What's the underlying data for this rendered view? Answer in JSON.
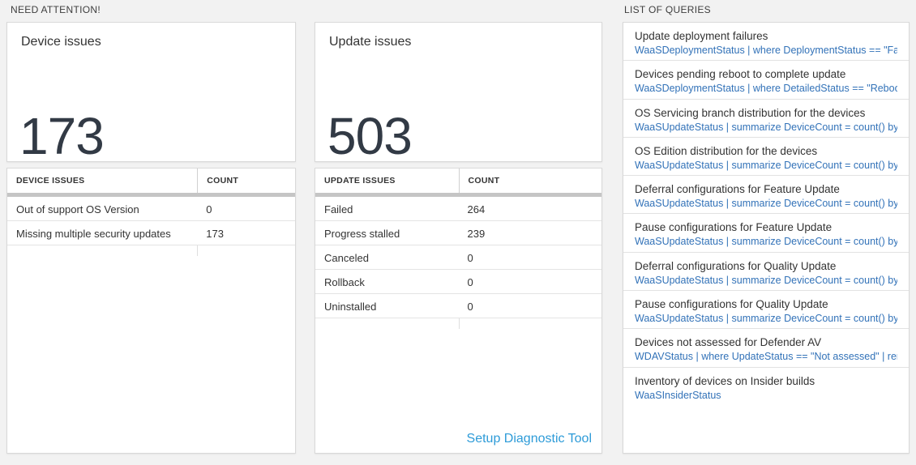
{
  "sections": {
    "need_attention_label": "NEED ATTENTION!",
    "list_of_queries_label": "LIST OF QUERIES"
  },
  "device_issues": {
    "title": "Device issues",
    "big_number": "173",
    "table": {
      "headers": [
        "DEVICE ISSUES",
        "COUNT"
      ],
      "rows": [
        {
          "label": "Out of support OS Version",
          "count": "0"
        },
        {
          "label": "Missing multiple security updates",
          "count": "173"
        }
      ]
    }
  },
  "update_issues": {
    "title": "Update issues",
    "big_number": "503",
    "table": {
      "headers": [
        "UPDATE ISSUES",
        "COUNT"
      ],
      "rows": [
        {
          "label": "Failed",
          "count": "264"
        },
        {
          "label": "Progress stalled",
          "count": "239"
        },
        {
          "label": "Canceled",
          "count": "0"
        },
        {
          "label": "Rollback",
          "count": "0"
        },
        {
          "label": "Uninstalled",
          "count": "0"
        }
      ]
    },
    "footer_link": "Setup Diagnostic Tool"
  },
  "queries": {
    "items": [
      {
        "title": "Update deployment failures",
        "query": "WaaSDeploymentStatus | where DeploymentStatus == \"Failed\" |..."
      },
      {
        "title": "Devices pending reboot to complete update",
        "query": "WaaSDeploymentStatus | where DetailedStatus == \"Reboot pend..."
      },
      {
        "title": "OS Servicing branch distribution for the devices",
        "query": "WaaSUpdateStatus | summarize DeviceCount = count() by OSSer..."
      },
      {
        "title": "OS Edition distribution for the devices",
        "query": "WaaSUpdateStatus | summarize DeviceCount = count() by OSEdit..."
      },
      {
        "title": "Deferral configurations for Feature Update",
        "query": "WaaSUpdateStatus | summarize DeviceCount = count() by Featur..."
      },
      {
        "title": "Pause configurations for Feature Update",
        "query": "WaaSUpdateStatus | summarize DeviceCount = count() by Featur..."
      },
      {
        "title": "Deferral configurations for Quality Update",
        "query": "WaaSUpdateStatus | summarize DeviceCount = count() by Qualit..."
      },
      {
        "title": "Pause configurations for Quality Update",
        "query": "WaaSUpdateStatus | summarize DeviceCount = count() by Qualit..."
      },
      {
        "title": "Devices not assessed for Defender AV",
        "query": "WDAVStatus | where UpdateStatus == \"Not assessed\" | render ta..."
      },
      {
        "title": "Inventory of devices on Insider builds",
        "query": "WaaSInsiderStatus"
      }
    ]
  },
  "colors": {
    "page_background": "#f2f2f2",
    "query_link_blue": "#3272b8",
    "footer_link_blue": "#2d9bd8",
    "big_number_color": "#323a45",
    "table_bar_gray": "#c5c5c5"
  }
}
